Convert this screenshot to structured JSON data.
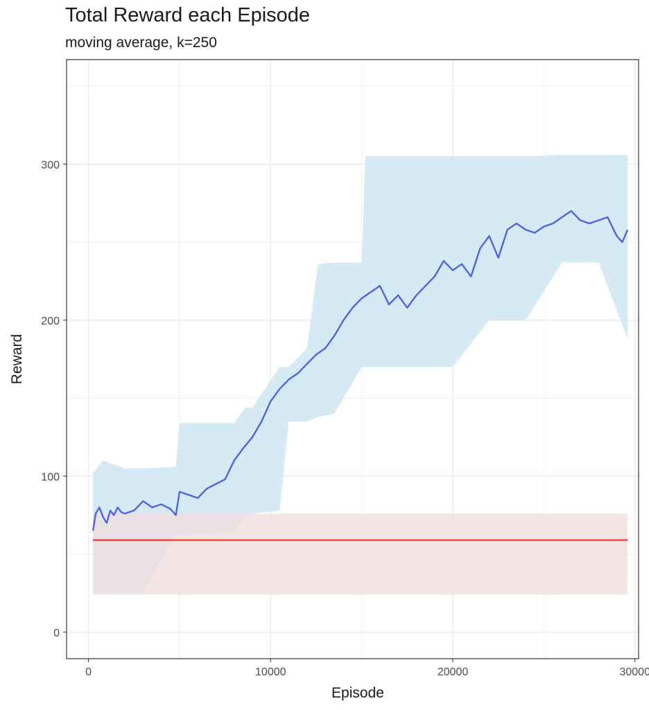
{
  "chart_data": {
    "type": "line",
    "title": "Total Reward each Episode",
    "subtitle": "moving average, k=250",
    "xlabel": "Episode",
    "ylabel": "Reward",
    "xlim": [
      -1200,
      30200
    ],
    "ylim": [
      -17,
      367
    ],
    "x_ticks": [
      0,
      10000,
      20000,
      30000
    ],
    "y_ticks": [
      0,
      100,
      200,
      300
    ],
    "grid": true,
    "colors": {
      "agent_line": "#4a64e8",
      "agent_band": "#cfe6f5",
      "baseline_line": "#e8463a",
      "baseline_band": "#f2dede",
      "panel_border": "#333333",
      "grid": "#ebebeb"
    },
    "series": [
      {
        "x": [
          250,
          400,
          600,
          800,
          1000,
          1200,
          1400,
          1600,
          1800,
          2000,
          2500,
          3000,
          3500,
          4000,
          4500,
          4800,
          5000,
          5500,
          6000,
          6500,
          7000,
          7500,
          8000,
          8500,
          9000,
          9500,
          10000,
          10500,
          11000,
          11500,
          12000,
          12500,
          13000,
          13500,
          14000,
          14500,
          15000,
          15500,
          16000,
          16500,
          17000,
          17500,
          18000,
          18500,
          19000,
          19500,
          20000,
          20500,
          21000,
          21500,
          22000,
          22500,
          23000,
          23500,
          24000,
          24500,
          25000,
          25500,
          26000,
          26500,
          27000,
          27500,
          28000,
          28500,
          29000,
          29300,
          29600
        ],
        "values": [
          65,
          76,
          80,
          74,
          70,
          78,
          75,
          80,
          77,
          76,
          78,
          84,
          80,
          82,
          79,
          75,
          90,
          88,
          86,
          92,
          95,
          98,
          110,
          118,
          125,
          135,
          148,
          156,
          162,
          166,
          172,
          178,
          182,
          190,
          200,
          208,
          214,
          218,
          222,
          210,
          216,
          208,
          216,
          222,
          228,
          238,
          232,
          236,
          228,
          246,
          254,
          240,
          258,
          262,
          258,
          256,
          260,
          262,
          266,
          270,
          264,
          262,
          264,
          266,
          254,
          250,
          258
        ]
      },
      {
        "x": [
          250,
          29600
        ],
        "values": [
          59,
          59
        ]
      }
    ],
    "bands": [
      {
        "x": [
          250,
          800,
          2000,
          3000,
          4800,
          5000,
          6000,
          8000,
          8600,
          9000,
          10500,
          11000,
          12000,
          12600,
          13500,
          15000,
          15200,
          16000,
          18000,
          20000,
          22000,
          24000,
          26000,
          28000,
          29600
        ],
        "lower": [
          25,
          25,
          25,
          25,
          62,
          62,
          63,
          64,
          74,
          76,
          78,
          135,
          135,
          138,
          140,
          170,
          170,
          170,
          170,
          170,
          200,
          200,
          237,
          237,
          188
        ],
        "upper": [
          102,
          110,
          105,
          105,
          106,
          134,
          134,
          134,
          144,
          144,
          170,
          170,
          182,
          236,
          237,
          237,
          305,
          305,
          305,
          305,
          305,
          305,
          306,
          306,
          306
        ]
      },
      {
        "x": [
          250,
          29600
        ],
        "lower": [
          24,
          24
        ],
        "upper": [
          76,
          76
        ]
      }
    ]
  }
}
